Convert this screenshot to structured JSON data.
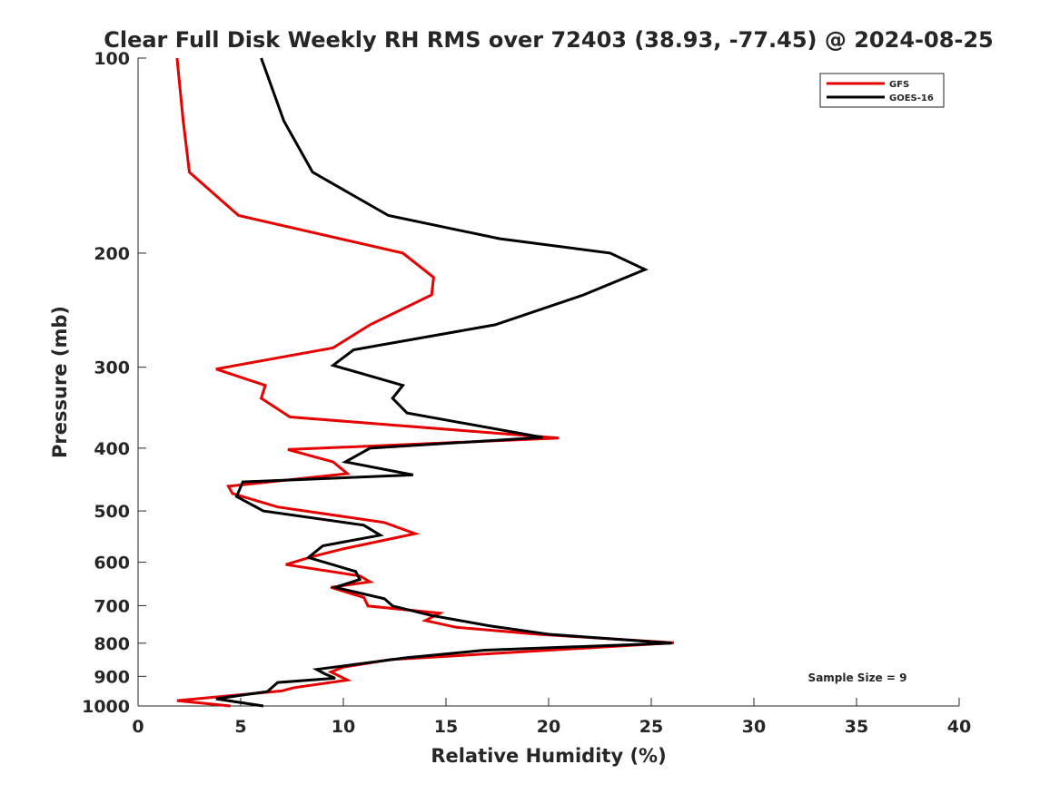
{
  "chart_data": {
    "type": "line",
    "title": "Clear Full Disk Weekly RH RMS over 72403 (38.93, -77.45) @ 2024-08-25",
    "xlabel": "Relative Humidity (%)",
    "ylabel": "Pressure (mb)",
    "xlim": [
      0,
      40
    ],
    "ylim": [
      100,
      1000
    ],
    "y_scale": "log",
    "y_reversed": true,
    "x_ticks": [
      0,
      5,
      10,
      15,
      20,
      25,
      30,
      35,
      40
    ],
    "y_ticks": [
      100,
      200,
      300,
      400,
      500,
      600,
      700,
      800,
      900,
      1000
    ],
    "grid": false,
    "legend_position": "top-right",
    "annotation": "Sample Size = 9",
    "series": [
      {
        "name": "GFS",
        "color": "#e60000",
        "points": [
          [
            1.9,
            100
          ],
          [
            2.2,
            125
          ],
          [
            2.5,
            150
          ],
          [
            4.9,
            175
          ],
          [
            12.9,
            200
          ],
          [
            14.4,
            218
          ],
          [
            14.3,
            232
          ],
          [
            11.3,
            258
          ],
          [
            9.5,
            280
          ],
          [
            3.8,
            302
          ],
          [
            6.2,
            320
          ],
          [
            6.0,
            335
          ],
          [
            7.4,
            358
          ],
          [
            20.5,
            386
          ],
          [
            7.3,
            402
          ],
          [
            9.5,
            420
          ],
          [
            10.2,
            438
          ],
          [
            4.4,
            458
          ],
          [
            4.6,
            470
          ],
          [
            6.8,
            493
          ],
          [
            12.0,
            521
          ],
          [
            13.5,
            542
          ],
          [
            10.0,
            572
          ],
          [
            8.5,
            588
          ],
          [
            7.2,
            605
          ],
          [
            10.8,
            630
          ],
          [
            11.3,
            643
          ],
          [
            9.4,
            656
          ],
          [
            11.0,
            680
          ],
          [
            11.2,
            701
          ],
          [
            14.7,
            719
          ],
          [
            14.0,
            738
          ],
          [
            15.5,
            756
          ],
          [
            19.5,
            775
          ],
          [
            26.1,
            799
          ],
          [
            12.3,
            848
          ],
          [
            10.0,
            871
          ],
          [
            9.4,
            886
          ],
          [
            10.2,
            912
          ],
          [
            7.6,
            937
          ],
          [
            7.0,
            948
          ],
          [
            1.9,
            981
          ],
          [
            4.5,
            1000
          ]
        ]
      },
      {
        "name": "GOES-16",
        "color": "#000000",
        "points": [
          [
            6.0,
            100
          ],
          [
            7.1,
            125
          ],
          [
            8.5,
            150
          ],
          [
            12.2,
            175
          ],
          [
            17.6,
            190
          ],
          [
            23.0,
            200
          ],
          [
            24.7,
            212
          ],
          [
            21.7,
            232
          ],
          [
            17.4,
            258
          ],
          [
            10.5,
            282
          ],
          [
            9.5,
            298
          ],
          [
            12.9,
            320
          ],
          [
            12.4,
            335
          ],
          [
            13.1,
            353
          ],
          [
            19.7,
            385
          ],
          [
            11.3,
            400
          ],
          [
            10.1,
            420
          ],
          [
            13.4,
            440
          ],
          [
            5.1,
            451
          ],
          [
            4.8,
            475
          ],
          [
            6.1,
            500
          ],
          [
            11.0,
            526
          ],
          [
            11.8,
            545
          ],
          [
            9.0,
            566
          ],
          [
            8.3,
            590
          ],
          [
            10.6,
            620
          ],
          [
            10.8,
            638
          ],
          [
            9.6,
            656
          ],
          [
            12.0,
            683
          ],
          [
            12.4,
            701
          ],
          [
            14.3,
            725
          ],
          [
            17.1,
            752
          ],
          [
            20.0,
            775
          ],
          [
            26.0,
            800
          ],
          [
            16.9,
            820
          ],
          [
            13.0,
            843
          ],
          [
            8.7,
            878
          ],
          [
            9.1,
            892
          ],
          [
            9.6,
            906
          ],
          [
            6.8,
            920
          ],
          [
            6.3,
            950
          ],
          [
            3.8,
            975
          ],
          [
            6.1,
            1000
          ]
        ]
      }
    ]
  }
}
